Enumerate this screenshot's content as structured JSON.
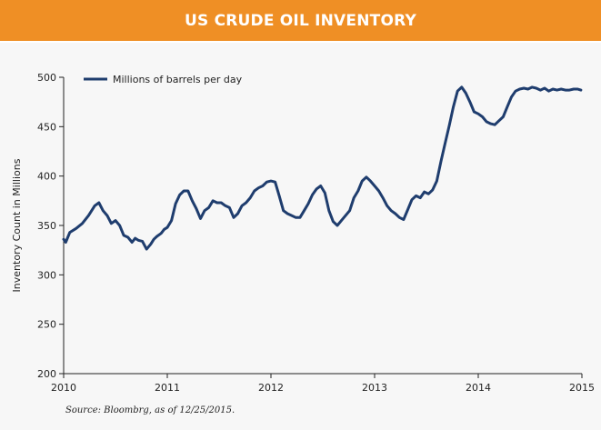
{
  "header": {
    "title": "US CRUDE OIL INVENTORY"
  },
  "footer": {
    "source": "Source: Bloombrg, as of 12/25/2015."
  },
  "colors": {
    "header_bg": "#ef8f25",
    "series_line": "#1f3d6e",
    "axis": "#222222",
    "panel_bg": "#f7f7f7"
  },
  "chart_data": {
    "type": "line",
    "title": "US CRUDE OIL INVENTORY",
    "xlabel": "",
    "ylabel": "Inventory Count in Millions",
    "xlim": [
      2010,
      2015
    ],
    "ylim": [
      200,
      500
    ],
    "x_ticks": [
      "2010",
      "2011",
      "2012",
      "2013",
      "2014",
      "2015"
    ],
    "y_ticks": [
      "200",
      "250",
      "300",
      "350",
      "400",
      "450",
      "500"
    ],
    "grid": false,
    "legend_position": "top-left",
    "series": [
      {
        "name": "Millions of barrels per day",
        "x": [
          2010.0,
          2010.02,
          2010.06,
          2010.12,
          2010.18,
          2010.24,
          2010.3,
          2010.34,
          2010.38,
          2010.42,
          2010.46,
          2010.5,
          2010.54,
          2010.58,
          2010.62,
          2010.66,
          2010.69,
          2010.72,
          2010.76,
          2010.8,
          2010.84,
          2010.87,
          2010.9,
          2010.94,
          2010.97,
          2011.0,
          2011.04,
          2011.08,
          2011.12,
          2011.16,
          2011.2,
          2011.24,
          2011.28,
          2011.32,
          2011.36,
          2011.4,
          2011.44,
          2011.48,
          2011.52,
          2011.56,
          2011.6,
          2011.64,
          2011.68,
          2011.72,
          2011.76,
          2011.8,
          2011.84,
          2011.88,
          2011.92,
          2011.96,
          2012.0,
          2012.04,
          2012.08,
          2012.12,
          2012.16,
          2012.2,
          2012.24,
          2012.28,
          2012.32,
          2012.36,
          2012.4,
          2012.44,
          2012.48,
          2012.52,
          2012.56,
          2012.6,
          2012.64,
          2012.68,
          2012.72,
          2012.76,
          2012.8,
          2012.84,
          2012.88,
          2012.92,
          2012.96,
          2013.0,
          2013.04,
          2013.08,
          2013.12,
          2013.16,
          2013.2,
          2013.24,
          2013.28,
          2013.32,
          2013.36,
          2013.4,
          2013.44,
          2013.48,
          2013.52,
          2013.56,
          2013.6,
          2013.64,
          2013.68,
          2013.72,
          2013.76,
          2013.8,
          2013.84,
          2013.88,
          2013.92,
          2013.96,
          2014.0,
          2014.04,
          2014.08,
          2014.12,
          2014.16,
          2014.2,
          2014.24,
          2014.28,
          2014.32,
          2014.36,
          2014.4,
          2014.44,
          2014.48,
          2014.52,
          2014.56,
          2014.6,
          2014.64,
          2014.68,
          2014.72,
          2014.76,
          2014.8,
          2014.84,
          2014.88,
          2014.92,
          2014.96,
          2014.99
        ],
        "values": [
          336,
          333,
          343,
          347,
          352,
          360,
          370,
          373,
          365,
          360,
          352,
          355,
          350,
          340,
          338,
          333,
          337,
          335,
          334,
          326,
          331,
          336,
          339,
          342,
          346,
          348,
          355,
          372,
          381,
          385,
          385,
          375,
          367,
          357,
          365,
          368,
          375,
          373,
          373,
          370,
          368,
          358,
          362,
          370,
          373,
          378,
          385,
          388,
          390,
          394,
          395,
          394,
          380,
          365,
          362,
          360,
          358,
          358,
          365,
          372,
          381,
          387,
          390,
          383,
          365,
          354,
          350,
          355,
          360,
          365,
          378,
          385,
          395,
          399,
          395,
          390,
          385,
          378,
          370,
          365,
          362,
          358,
          356,
          366,
          376,
          380,
          378,
          384,
          382,
          386,
          395,
          415,
          433,
          451,
          470,
          486,
          490,
          484,
          475,
          465,
          463,
          460,
          455,
          453,
          452,
          456,
          460,
          470,
          480,
          486,
          488,
          489,
          488,
          490,
          489,
          487,
          489,
          486,
          488,
          487,
          488,
          487,
          487,
          488,
          488,
          487
        ]
      }
    ]
  }
}
